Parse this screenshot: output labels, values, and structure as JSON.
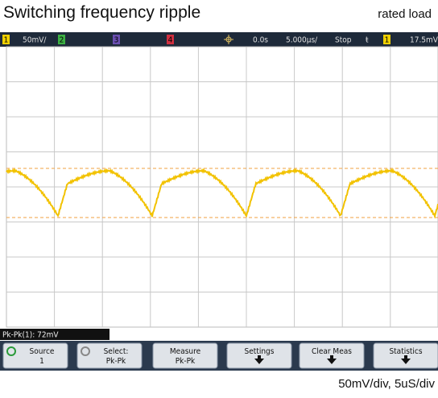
{
  "header": {
    "title": "Switching frequency ripple",
    "subtitle": "rated load"
  },
  "status_bar": {
    "ch1": "1",
    "ch1_scale": "50mV/",
    "ch2": "2",
    "ch3": "3",
    "ch4": "4",
    "delay": "0.0s",
    "timebase": "5.000µs/",
    "run_state": "Stop",
    "trigger_source": "1",
    "trigger_level": "17.5mV"
  },
  "measurement": "Pk-Pk(1): 72mV",
  "softkeys": [
    {
      "line1": "Source",
      "line2": "1"
    },
    {
      "line1": "Select:",
      "line2": "Pk-Pk"
    },
    {
      "line1": "Measure",
      "line2": "Pk-Pk"
    },
    {
      "line1": "Settings"
    },
    {
      "line1": "Clear Meas"
    },
    {
      "line1": "Statistics"
    }
  ],
  "caption": "50mV/div, 5uS/div"
}
